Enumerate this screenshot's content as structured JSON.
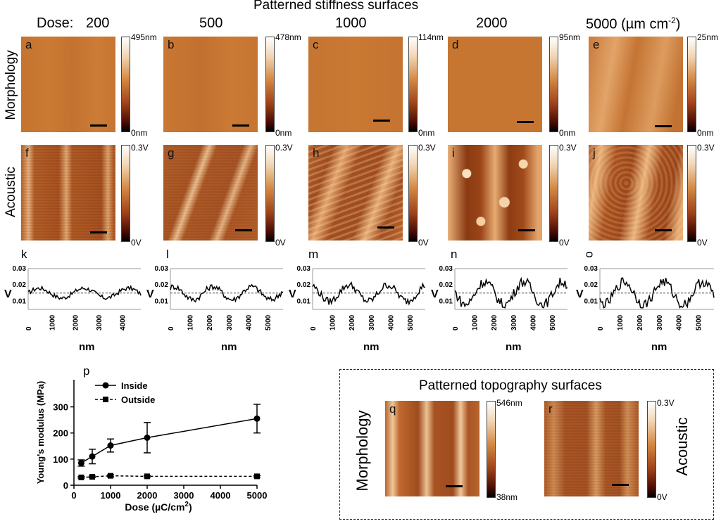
{
  "title": "Patterned stiffness surfaces",
  "dose_label": "Dose:",
  "doses": [
    "200",
    "500",
    "1000",
    "2000",
    "5000"
  ],
  "dose_unit": "(µm  cm",
  "dose_unit_sup": "-2",
  "dose_unit_end": ")",
  "row_labels": {
    "morphology": "Morphology",
    "acoustic": "Acoustic"
  },
  "morph_panels": [
    {
      "letter": "a",
      "cmax": "495nm",
      "cmin": "0nm"
    },
    {
      "letter": "b",
      "cmax": "478nm",
      "cmin": "0nm"
    },
    {
      "letter": "c",
      "cmax": "114nm",
      "cmin": "0nm"
    },
    {
      "letter": "d",
      "cmax": "95nm",
      "cmin": "0nm"
    },
    {
      "letter": "e",
      "cmax": "25nm",
      "cmin": "0nm"
    }
  ],
  "acoustic_panels": [
    {
      "letter": "f",
      "cmax": "0.3V",
      "cmin": "0V"
    },
    {
      "letter": "g",
      "cmax": "0.3V",
      "cmin": "0V"
    },
    {
      "letter": "h",
      "cmax": "0.3V",
      "cmin": "0V"
    },
    {
      "letter": "i",
      "cmax": "0.3V",
      "cmin": "0V"
    },
    {
      "letter": "j",
      "cmax": "0.3V",
      "cmin": "0V"
    }
  ],
  "profiles": [
    {
      "letter": "k",
      "xmax": 4000,
      "xticks": [
        "0",
        "1000",
        "2000",
        "3000",
        "4000"
      ]
    },
    {
      "letter": "l",
      "xmax": 5000,
      "xticks": [
        "0",
        "1000",
        "2000",
        "3000",
        "4000",
        "5000"
      ]
    },
    {
      "letter": "m",
      "xmax": 5000,
      "xticks": [
        "0",
        "1000",
        "2000",
        "3000",
        "4000",
        "5000"
      ]
    },
    {
      "letter": "n",
      "xmax": 5000,
      "xticks": [
        "0",
        "1000",
        "2000",
        "3000",
        "4000",
        "5000"
      ]
    },
    {
      "letter": "o",
      "xmax": 5000,
      "xticks": [
        "0",
        "1000",
        "2000",
        "3000",
        "4000",
        "5000"
      ]
    }
  ],
  "profile_ylabel": "V",
  "profile_yticks": [
    "0.03",
    "0.02",
    "0.01"
  ],
  "profile_xlabel": "nm",
  "chart_data": [
    {
      "type": "line",
      "panel": "p",
      "title": "",
      "xlabel": "Dose (µC/cm",
      "xlabel_sup": "2",
      "xlabel_end": ")",
      "ylabel": "Young's modulus (MPa)",
      "xlim": [
        0,
        5000
      ],
      "ylim": [
        0,
        350
      ],
      "xticks": [
        "0",
        "1000",
        "2000",
        "3000",
        "4000",
        "5000"
      ],
      "yticks": [
        "0",
        "100",
        "200",
        "300"
      ],
      "x": [
        200,
        500,
        1000,
        2000,
        5000
      ],
      "series": [
        {
          "name": "Inside",
          "values": [
            85,
            110,
            152,
            182,
            255
          ],
          "errors": [
            12,
            28,
            25,
            58,
            55
          ],
          "style": "solid",
          "marker": "circle"
        },
        {
          "name": "Outside",
          "values": [
            30,
            32,
            36,
            34,
            34
          ],
          "errors": [
            3,
            3,
            4,
            3,
            3
          ],
          "style": "dashed",
          "marker": "square"
        }
      ]
    }
  ],
  "topo": {
    "title": "Patterned topography surfaces",
    "morph_label": "Morphology",
    "acoustic_label": "Acoustic",
    "q": {
      "letter": "q",
      "cmax": "546nm",
      "cmin": "38nm"
    },
    "r": {
      "letter": "r",
      "cmax": "0.3V",
      "cmin": "0V"
    }
  }
}
